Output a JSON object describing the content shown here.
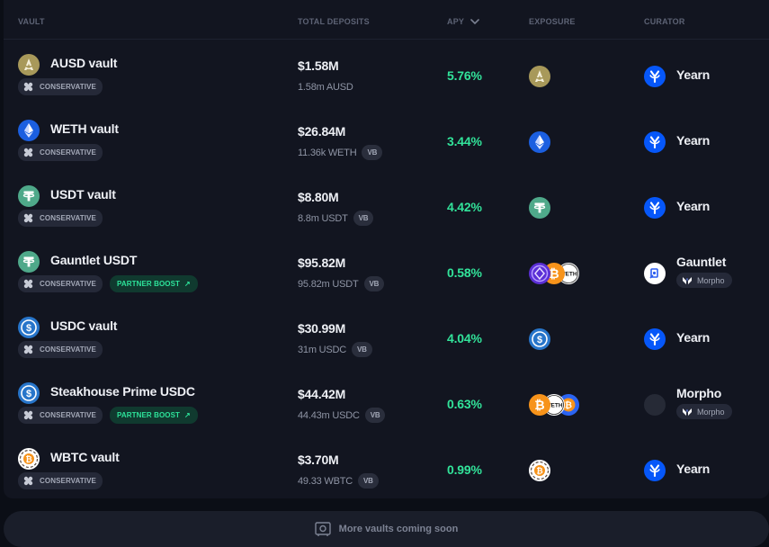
{
  "columns": {
    "vault": "VAULT",
    "deposits": "TOTAL DEPOSITS",
    "apy": "APY",
    "exposure": "EXPOSURE",
    "curator": "CURATOR"
  },
  "rows": [
    {
      "name": "AUSD vault",
      "asset_icon": "ausd-icon",
      "risk": "CONSERVATIVE",
      "boost": "",
      "deposit_usd": "$1.58M",
      "deposit_native": "1.58m AUSD",
      "vb": "",
      "apy": "5.76%",
      "exposure": [
        "ausd-icon"
      ],
      "curator": "Yearn",
      "curator_icon": "yearn-icon",
      "curator_sub": ""
    },
    {
      "name": "WETH vault",
      "asset_icon": "eth-icon",
      "risk": "CONSERVATIVE",
      "boost": "",
      "deposit_usd": "$26.84M",
      "deposit_native": "11.36k WETH",
      "vb": "VB",
      "apy": "3.44%",
      "exposure": [
        "eth-icon"
      ],
      "curator": "Yearn",
      "curator_icon": "yearn-icon",
      "curator_sub": ""
    },
    {
      "name": "USDT vault",
      "asset_icon": "usdt-icon",
      "risk": "CONSERVATIVE",
      "boost": "",
      "deposit_usd": "$8.80M",
      "deposit_native": "8.8m USDT",
      "vb": "VB",
      "apy": "4.42%",
      "exposure": [
        "usdt-icon"
      ],
      "curator": "Yearn",
      "curator_icon": "yearn-icon",
      "curator_sub": ""
    },
    {
      "name": "Gauntlet USDT",
      "asset_icon": "usdt-icon",
      "risk": "CONSERVATIVE",
      "boost": "PARTNER BOOST",
      "deposit_usd": "$95.82M",
      "deposit_native": "95.82m USDT",
      "vb": "VB",
      "apy": "0.58%",
      "exposure": [
        "purple-token-icon",
        "btc-icon",
        "weth-text-icon"
      ],
      "curator": "Gauntlet",
      "curator_icon": "gauntlet-icon",
      "curator_sub": "Morpho"
    },
    {
      "name": "USDC vault",
      "asset_icon": "usdc-icon",
      "risk": "CONSERVATIVE",
      "boost": "",
      "deposit_usd": "$30.99M",
      "deposit_native": "31m USDC",
      "vb": "VB",
      "apy": "4.04%",
      "exposure": [
        "usdc-icon"
      ],
      "curator": "Yearn",
      "curator_icon": "yearn-icon",
      "curator_sub": ""
    },
    {
      "name": "Steakhouse Prime USDC",
      "asset_icon": "usdc-icon",
      "risk": "CONSERVATIVE",
      "boost": "PARTNER BOOST",
      "deposit_usd": "$44.42M",
      "deposit_native": "44.43m USDC",
      "vb": "VB",
      "apy": "0.63%",
      "exposure": [
        "btc-icon",
        "weth-text-icon",
        "cbbtc-icon"
      ],
      "curator": "Morpho",
      "curator_icon": "morpho-dark-icon",
      "curator_sub": "Morpho"
    },
    {
      "name": "WBTC vault",
      "asset_icon": "wbtc-icon",
      "risk": "CONSERVATIVE",
      "boost": "",
      "deposit_usd": "$3.70M",
      "deposit_native": "49.33 WBTC",
      "vb": "VB",
      "apy": "0.99%",
      "exposure": [
        "wbtc-icon"
      ],
      "curator": "Yearn",
      "curator_icon": "yearn-icon",
      "curator_sub": ""
    }
  ],
  "footer": {
    "text": "More vaults coming soon",
    "icon": "safe-icon"
  },
  "colors": {
    "apy_green": "#32e39a",
    "boost_green": "#2de39a",
    "yearn_blue": "#0657f9"
  }
}
